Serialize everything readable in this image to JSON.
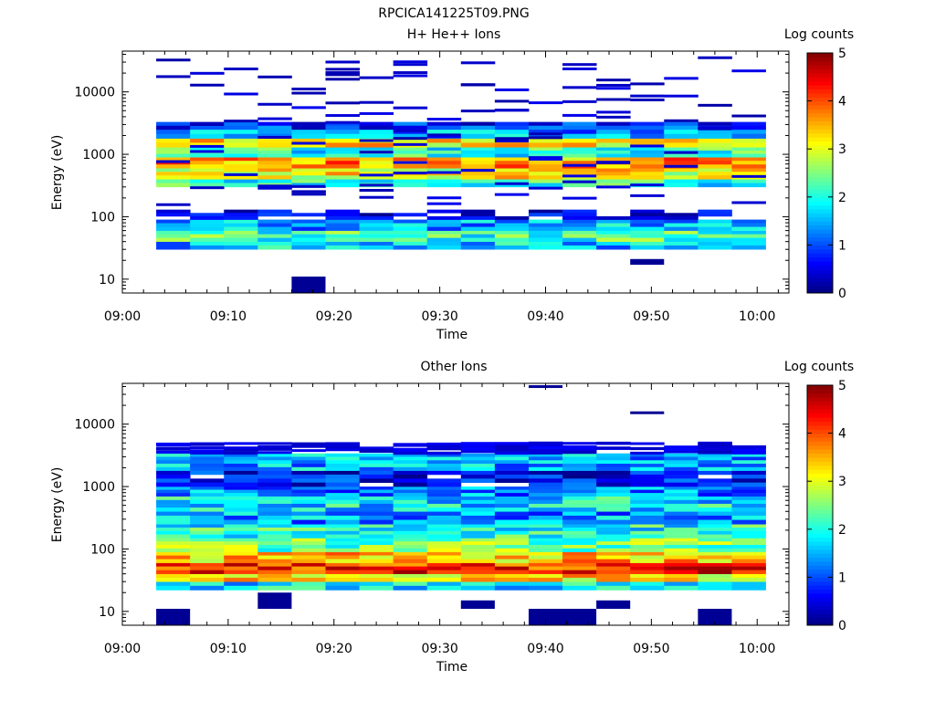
{
  "figure_title": "RPCICA141225T09.PNG",
  "chart_data": [
    {
      "type": "heatmap",
      "title": "H+ He++ Ions",
      "xlabel": "Time",
      "ylabel": "Energy (eV)",
      "x_ticks": [
        "09:00",
        "09:10",
        "09:20",
        "09:30",
        "09:40",
        "09:50",
        "10:00"
      ],
      "x_range_min": [
        0,
        63
      ],
      "y_ticks": [
        "10",
        "100",
        "1000",
        "10000"
      ],
      "y_range": [
        6,
        45000
      ],
      "y_scale": "log",
      "colorbar": {
        "label": "Log counts",
        "range": [
          0,
          5
        ],
        "ticks": [
          "0",
          "1",
          "2",
          "3",
          "4",
          "5"
        ],
        "colormap": "jet"
      },
      "time_bins_min": [
        3.2,
        6.4,
        9.6,
        12.8,
        16.0,
        19.2,
        22.4,
        25.6,
        28.8,
        32.0,
        35.2,
        38.4,
        41.6,
        44.8,
        48.0,
        51.2,
        54.4,
        57.6
      ],
      "bin_width_min": 3.2,
      "energy_bands": [
        {
          "e_lo": 30,
          "e_hi": 40,
          "value": 1.6
        },
        {
          "e_lo": 40,
          "e_hi": 60,
          "value": 2.2
        },
        {
          "e_lo": 60,
          "e_hi": 90,
          "value": 1.5
        },
        {
          "e_lo": 90,
          "e_hi": 130,
          "value": 0.3
        },
        {
          "e_lo": 300,
          "e_hi": 400,
          "value": 2.0
        },
        {
          "e_lo": 400,
          "e_hi": 600,
          "value": 3.1
        },
        {
          "e_lo": 600,
          "e_hi": 900,
          "value": 3.6
        },
        {
          "e_lo": 900,
          "e_hi": 1300,
          "value": 2.0
        },
        {
          "e_lo": 1300,
          "e_hi": 1800,
          "value": 3.3
        },
        {
          "e_lo": 1800,
          "e_hi": 2500,
          "value": 1.4
        },
        {
          "e_lo": 2500,
          "e_hi": 3300,
          "value": 0.8
        }
      ],
      "sparse_range": [
        150,
        40000
      ],
      "sparse_value": 0.2,
      "extra_blocks": [
        {
          "t0": 16.0,
          "t1": 19.2,
          "e_lo": 6,
          "e_hi": 11,
          "value": 0.1
        },
        {
          "t0": 48.0,
          "t1": 51.2,
          "e_lo": 17,
          "e_hi": 21,
          "value": 0.1
        }
      ]
    },
    {
      "type": "heatmap",
      "title": "Other Ions",
      "xlabel": "Time",
      "ylabel": "Energy (eV)",
      "x_ticks": [
        "09:00",
        "09:10",
        "09:20",
        "09:30",
        "09:40",
        "09:50",
        "10:00"
      ],
      "x_range_min": [
        0,
        63
      ],
      "y_ticks": [
        "10",
        "100",
        "1000",
        "10000"
      ],
      "y_range": [
        6,
        45000
      ],
      "y_scale": "log",
      "colorbar": {
        "label": "Log counts",
        "range": [
          0,
          5
        ],
        "ticks": [
          "0",
          "1",
          "2",
          "3",
          "4",
          "5"
        ],
        "colormap": "jet"
      },
      "time_bins_min": [
        3.2,
        6.4,
        9.6,
        12.8,
        16.0,
        19.2,
        22.4,
        25.6,
        28.8,
        32.0,
        35.2,
        38.4,
        41.6,
        44.8,
        48.0,
        51.2,
        54.4,
        57.6
      ],
      "bin_width_min": 3.2,
      "energy_bands": [
        {
          "e_lo": 22,
          "e_hi": 30,
          "value": 1.8
        },
        {
          "e_lo": 30,
          "e_hi": 40,
          "value": 3.2
        },
        {
          "e_lo": 40,
          "e_hi": 60,
          "value": 4.2
        },
        {
          "e_lo": 60,
          "e_hi": 90,
          "value": 3.4
        },
        {
          "e_lo": 90,
          "e_hi": 150,
          "value": 2.4
        },
        {
          "e_lo": 150,
          "e_hi": 250,
          "value": 2.0
        },
        {
          "e_lo": 250,
          "e_hi": 400,
          "value": 1.4
        },
        {
          "e_lo": 400,
          "e_hi": 700,
          "value": 1.8
        },
        {
          "e_lo": 700,
          "e_hi": 1000,
          "value": 1.3
        },
        {
          "e_lo": 1000,
          "e_hi": 1800,
          "value": 0.6
        },
        {
          "e_lo": 1800,
          "e_hi": 3400,
          "value": 1.5
        }
      ],
      "sparse_range": [
        3400,
        5000
      ],
      "sparse_value": 0.3,
      "extra_blocks": [
        {
          "t0": 3.2,
          "t1": 6.4,
          "e_lo": 6,
          "e_hi": 11,
          "value": 0.1
        },
        {
          "t0": 12.8,
          "t1": 16.0,
          "e_lo": 11,
          "e_hi": 20,
          "value": 0.1
        },
        {
          "t0": 32.0,
          "t1": 35.2,
          "e_lo": 11,
          "e_hi": 15,
          "value": 0.1
        },
        {
          "t0": 38.4,
          "t1": 44.8,
          "e_lo": 6,
          "e_hi": 11,
          "value": 0.1
        },
        {
          "t0": 44.8,
          "t1": 48.0,
          "e_lo": 11,
          "e_hi": 15,
          "value": 0.1
        },
        {
          "t0": 54.4,
          "t1": 57.6,
          "e_lo": 6,
          "e_hi": 11,
          "value": 0.1
        },
        {
          "t0": 38.4,
          "t1": 41.6,
          "e_lo": 40000,
          "e_hi": 42000,
          "value": 0.1
        },
        {
          "t0": 48.0,
          "t1": 51.2,
          "e_lo": 15000,
          "e_hi": 16000,
          "value": 0.1
        }
      ]
    }
  ]
}
